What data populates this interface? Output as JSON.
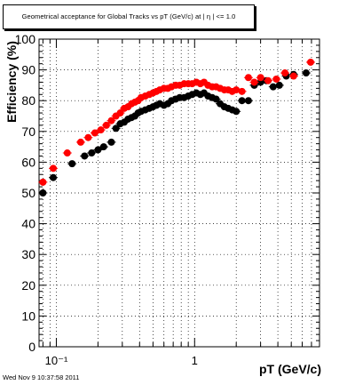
{
  "title": "Geometrical acceptance for Global Tracks vs pT (GeV/c) at | η | <= 1.0",
  "timestamp": "Wed Nov  9 10:37:58 2011",
  "chart_data": {
    "type": "scatter",
    "xlabel": "pT (GeV/c)",
    "ylabel": "Efficiency (%)",
    "xscale": "log",
    "xlim": [
      0.075,
      8.0
    ],
    "ylim": [
      0,
      100
    ],
    "grid": true,
    "xticklabels": [
      "10⁻¹",
      "1"
    ],
    "yticks": [
      0,
      10,
      20,
      30,
      40,
      50,
      60,
      70,
      80,
      90,
      100
    ],
    "colors": {
      "black_series": "#000000",
      "red_series": "#ff0000",
      "frame": "#000000",
      "grid": "#000000"
    },
    "series": [
      {
        "color": "#000000",
        "x": [
          0.08,
          0.095,
          0.13,
          0.16,
          0.18,
          0.2,
          0.22,
          0.25,
          0.27,
          0.29,
          0.31,
          0.33,
          0.35,
          0.37,
          0.39,
          0.41,
          0.44,
          0.47,
          0.5,
          0.53,
          0.56,
          0.6,
          0.64,
          0.68,
          0.73,
          0.78,
          0.84,
          0.9,
          0.96,
          1.03,
          1.1,
          1.17,
          1.25,
          1.34,
          1.43,
          1.53,
          1.64,
          1.75,
          1.87,
          2.0,
          2.2,
          2.45,
          2.7,
          3.0,
          3.3,
          3.7,
          4.1,
          4.6,
          5.2,
          6.4
        ],
        "y": [
          50.0,
          55.0,
          59.5,
          62.0,
          63.0,
          64.0,
          65.0,
          66.5,
          71.0,
          72.5,
          73.0,
          74.0,
          74.5,
          75.0,
          76.0,
          76.5,
          77.0,
          77.5,
          78.0,
          78.5,
          79.0,
          78.5,
          79.0,
          80.0,
          80.5,
          81.0,
          81.0,
          81.5,
          82.0,
          82.5,
          82.0,
          82.5,
          81.5,
          81.0,
          80.5,
          79.0,
          78.0,
          77.5,
          77.0,
          76.5,
          80.0,
          80.0,
          85.0,
          86.0,
          86.5,
          84.5,
          85.0,
          88.0,
          88.5,
          89.0
        ]
      },
      {
        "color": "#ff0000",
        "x": [
          0.08,
          0.095,
          0.12,
          0.15,
          0.17,
          0.19,
          0.21,
          0.23,
          0.25,
          0.27,
          0.29,
          0.31,
          0.33,
          0.35,
          0.37,
          0.39,
          0.41,
          0.44,
          0.47,
          0.5,
          0.53,
          0.56,
          0.6,
          0.64,
          0.68,
          0.73,
          0.78,
          0.84,
          0.9,
          0.96,
          1.03,
          1.1,
          1.17,
          1.25,
          1.34,
          1.43,
          1.53,
          1.64,
          1.75,
          1.87,
          2.0,
          2.2,
          2.45,
          2.7,
          3.0,
          3.4,
          3.9,
          4.5,
          5.2,
          6.9
        ],
        "y": [
          53.5,
          58.0,
          63.0,
          66.5,
          68.0,
          69.5,
          70.5,
          72.0,
          73.5,
          75.0,
          76.0,
          77.5,
          78.0,
          79.0,
          79.5,
          80.0,
          81.0,
          81.5,
          82.0,
          82.5,
          83.0,
          83.5,
          84.0,
          84.0,
          84.5,
          85.0,
          85.0,
          85.5,
          85.5,
          85.5,
          86.0,
          85.5,
          86.0,
          85.0,
          84.5,
          84.5,
          84.0,
          83.5,
          83.5,
          83.0,
          83.5,
          83.0,
          87.5,
          86.0,
          87.5,
          86.5,
          87.0,
          89.0,
          88.0,
          92.5
        ]
      }
    ]
  }
}
